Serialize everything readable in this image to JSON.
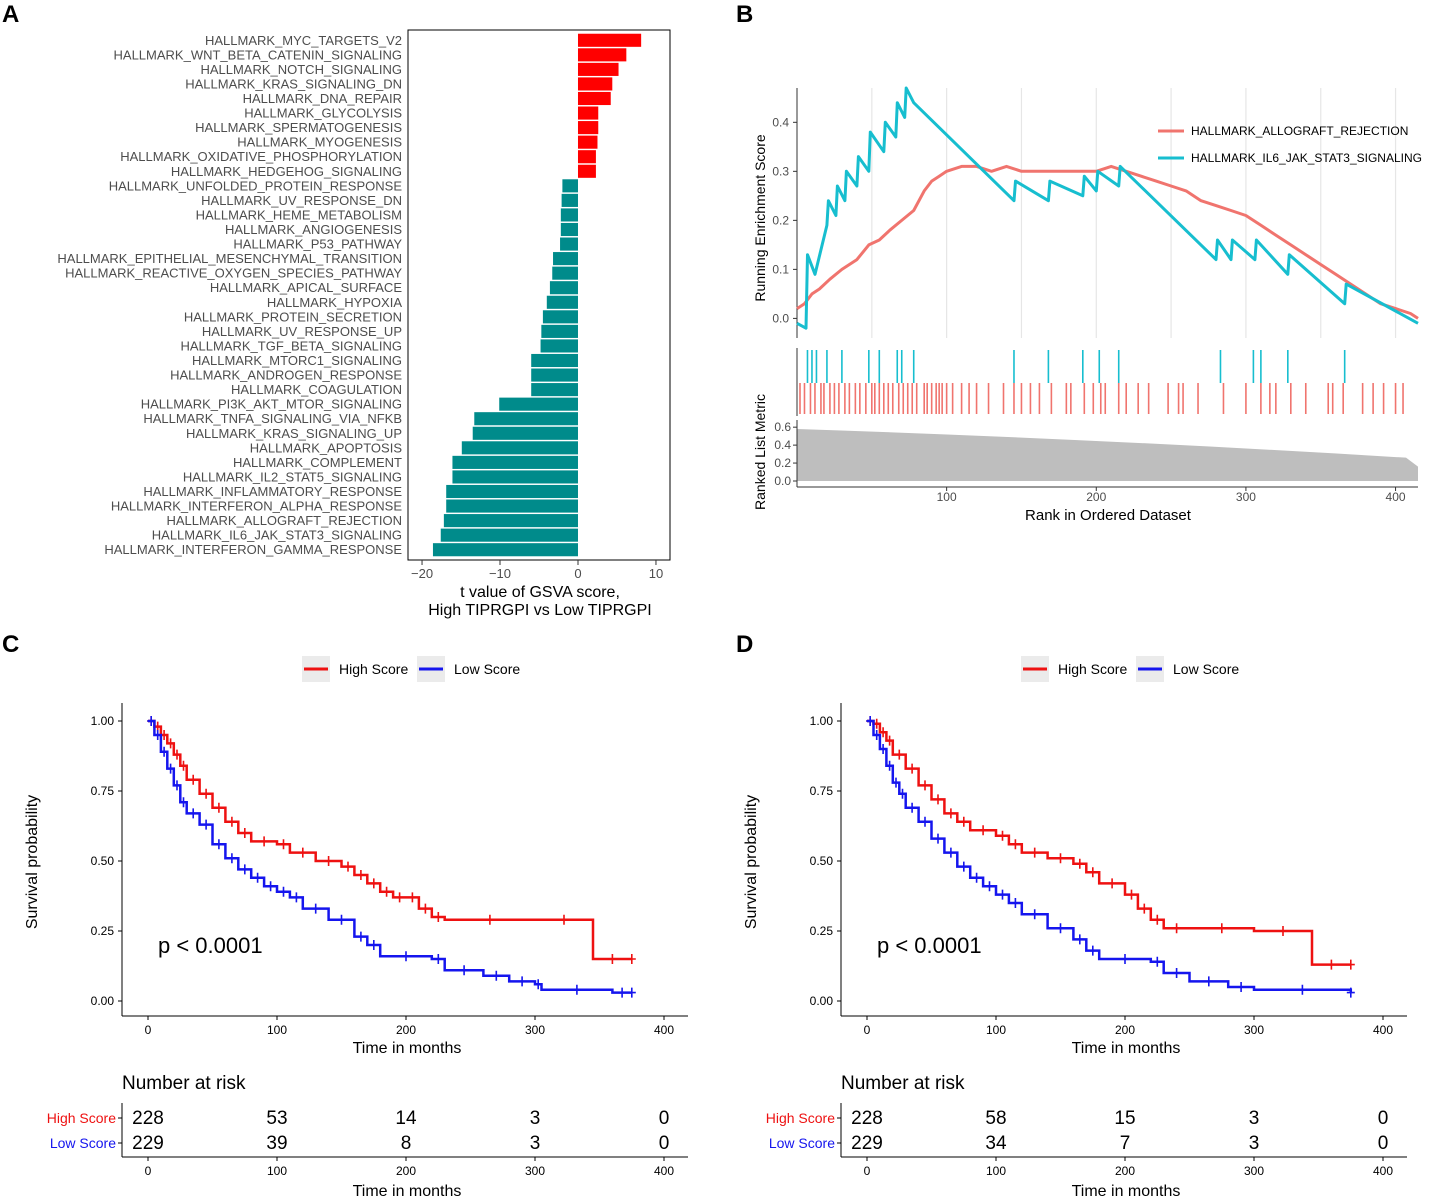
{
  "colors": {
    "up": "#ff0000",
    "down": "#008b8b",
    "allograft": "#f0746e",
    "il6": "#17becf",
    "metric": "#bebebe",
    "high": "#ee1111",
    "low": "#1515ee",
    "axis": "#333333"
  },
  "panel_labels": {
    "a": "A",
    "b": "B",
    "c": "C",
    "d": "D"
  },
  "chart_data": [
    {
      "id": "A",
      "type": "bar",
      "orientation": "horizontal",
      "xlabel": "t value of GSVA score,",
      "xlabel2": "High TIPRGPI vs Low TIPRGPI",
      "xlim": [
        -20,
        10
      ],
      "xticks": [
        -20,
        -10,
        0,
        10
      ],
      "categories": [
        "HALLMARK_MYC_TARGETS_V2",
        "HALLMARK_WNT_BETA_CATENIN_SIGNALING",
        "HALLMARK_NOTCH_SIGNALING",
        "HALLMARK_KRAS_SIGNALING_DN",
        "HALLMARK_DNA_REPAIR",
        "HALLMARK_GLYCOLYSIS",
        "HALLMARK_SPERMATOGENESIS",
        "HALLMARK_MYOGENESIS",
        "HALLMARK_OXIDATIVE_PHOSPHORYLATION",
        "HALLMARK_HEDGEHOG_SIGNALING",
        "HALLMARK_UNFOLDED_PROTEIN_RESPONSE",
        "HALLMARK_UV_RESPONSE_DN",
        "HALLMARK_HEME_METABOLISM",
        "HALLMARK_ANGIOGENESIS",
        "HALLMARK_P53_PATHWAY",
        "HALLMARK_EPITHELIAL_MESENCHYMAL_TRANSITION",
        "HALLMARK_REACTIVE_OXYGEN_SPECIES_PATHWAY",
        "HALLMARK_APICAL_SURFACE",
        "HALLMARK_HYPOXIA",
        "HALLMARK_PROTEIN_SECRETION",
        "HALLMARK_UV_RESPONSE_UP",
        "HALLMARK_TGF_BETA_SIGNALING",
        "HALLMARK_MTORC1_SIGNALING",
        "HALLMARK_ANDROGEN_RESPONSE",
        "HALLMARK_COAGULATION",
        "HALLMARK_PI3K_AKT_MTOR_SIGNALING",
        "HALLMARK_TNFA_SIGNALING_VIA_NFKB",
        "HALLMARK_KRAS_SIGNALING_UP",
        "HALLMARK_APOPTOSIS",
        "HALLMARK_COMPLEMENT",
        "HALLMARK_IL2_STAT5_SIGNALING",
        "HALLMARK_INFLAMMATORY_RESPONSE",
        "HALLMARK_INTERFERON_ALPHA_RESPONSE",
        "HALLMARK_ALLOGRAFT_REJECTION",
        "HALLMARK_IL6_JAK_STAT3_SIGNALING",
        "HALLMARK_INTERFERON_GAMMA_RESPONSE"
      ],
      "values": [
        8.1,
        6.2,
        5.2,
        4.4,
        4.2,
        2.6,
        2.6,
        2.5,
        2.3,
        2.3,
        -2.0,
        -2.1,
        -2.2,
        -2.2,
        -2.3,
        -3.2,
        -3.3,
        -3.6,
        -4.0,
        -4.5,
        -4.7,
        -4.8,
        -6.0,
        -6.0,
        -6.0,
        -10.1,
        -13.3,
        -13.5,
        -14.9,
        -16.1,
        -16.1,
        -16.9,
        -16.9,
        -17.2,
        -17.6,
        -18.6
      ]
    },
    {
      "id": "B",
      "type": "line",
      "ylabel": "Running Enrichment Score",
      "ylabel2": "Ranked List Metric",
      "xlabel": "Rank in Ordered Dataset",
      "xlim": [
        0,
        415
      ],
      "ylim": [
        -0.04,
        0.47
      ],
      "metric_ylim": [
        0,
        0.68
      ],
      "xticks": [
        100,
        200,
        300,
        400
      ],
      "yticks": [
        "0.0",
        "0.1",
        "0.2",
        "0.3",
        "0.4"
      ],
      "metric_yticks": [
        "0.0",
        "0.2",
        "0.4",
        "0.6"
      ],
      "series": [
        {
          "name": "HALLMARK_ALLOGRAFT_REJECTION",
          "x": [
            0,
            5,
            10,
            15,
            22,
            30,
            40,
            48,
            55,
            62,
            70,
            78,
            85,
            90,
            95,
            100,
            110,
            120,
            130,
            140,
            150,
            160,
            170,
            180,
            190,
            200,
            210,
            220,
            230,
            240,
            250,
            260,
            270,
            280,
            290,
            300,
            310,
            320,
            330,
            340,
            350,
            360,
            370,
            380,
            390,
            400,
            410,
            415
          ],
          "y": [
            0.02,
            0.03,
            0.05,
            0.06,
            0.08,
            0.1,
            0.12,
            0.15,
            0.16,
            0.18,
            0.2,
            0.22,
            0.26,
            0.28,
            0.29,
            0.3,
            0.31,
            0.31,
            0.3,
            0.31,
            0.3,
            0.3,
            0.3,
            0.3,
            0.3,
            0.3,
            0.31,
            0.3,
            0.29,
            0.28,
            0.27,
            0.26,
            0.24,
            0.23,
            0.22,
            0.21,
            0.19,
            0.17,
            0.15,
            0.13,
            0.11,
            0.09,
            0.07,
            0.05,
            0.03,
            0.02,
            0.01,
            0.0
          ]
        },
        {
          "name": "HALLMARK_IL6_JAK_STAT3_SIGNALING",
          "x": [
            0,
            6,
            7,
            12,
            20,
            21,
            26,
            27,
            32,
            33,
            40,
            41,
            48,
            49,
            58,
            59,
            66,
            67,
            72,
            73,
            78,
            145,
            146,
            168,
            169,
            191,
            192,
            200,
            201,
            215,
            216,
            280,
            281,
            290,
            291,
            306,
            307,
            328,
            329,
            366,
            367,
            415
          ],
          "y": [
            -0.01,
            -0.02,
            0.13,
            0.09,
            0.19,
            0.24,
            0.21,
            0.27,
            0.24,
            0.3,
            0.27,
            0.33,
            0.3,
            0.38,
            0.34,
            0.4,
            0.37,
            0.44,
            0.41,
            0.47,
            0.44,
            0.24,
            0.28,
            0.24,
            0.28,
            0.25,
            0.29,
            0.26,
            0.3,
            0.27,
            0.31,
            0.12,
            0.16,
            0.12,
            0.16,
            0.12,
            0.16,
            0.09,
            0.13,
            0.03,
            0.07,
            -0.01
          ]
        }
      ],
      "hits_il6": [
        7,
        10,
        13,
        20,
        30,
        48,
        55,
        67,
        70,
        78,
        145,
        168,
        191,
        202,
        215,
        283,
        305,
        310,
        328,
        366
      ],
      "hits_allograft": [
        2,
        5,
        9,
        12,
        16,
        18,
        22,
        25,
        28,
        32,
        35,
        39,
        42,
        46,
        50,
        52,
        55,
        58,
        61,
        64,
        68,
        71,
        74,
        77,
        80,
        85,
        87,
        90,
        93,
        95,
        97,
        100,
        104,
        110,
        115,
        120,
        128,
        138,
        145,
        150,
        156,
        162,
        170,
        180,
        183,
        192,
        198,
        203,
        206,
        215,
        220,
        228,
        235,
        248,
        255,
        258,
        268,
        285,
        300,
        310,
        316,
        320,
        330,
        340,
        355,
        358,
        365,
        378,
        385,
        392,
        400,
        405
      ]
    },
    {
      "id": "C",
      "type": "line",
      "subtype": "survival",
      "xlabel": "Time in months",
      "ylabel": "Survival probability",
      "xlim": [
        0,
        400
      ],
      "ylim": [
        0,
        1
      ],
      "xticks": [
        0,
        100,
        200,
        300,
        400
      ],
      "yticks": [
        "0.00",
        "0.25",
        "0.50",
        "0.75",
        "1.00"
      ],
      "pvalue": "p < 0.0001",
      "legend": [
        "High Score",
        "Low Score"
      ],
      "series": [
        {
          "name": "High Score",
          "x": [
            0,
            5,
            10,
            15,
            20,
            25,
            30,
            40,
            50,
            60,
            70,
            80,
            100,
            110,
            130,
            150,
            160,
            170,
            180,
            190,
            200,
            210,
            220,
            230,
            300,
            345,
            375
          ],
          "y": [
            1,
            0.98,
            0.95,
            0.92,
            0.88,
            0.84,
            0.79,
            0.74,
            0.69,
            0.64,
            0.6,
            0.57,
            0.56,
            0.53,
            0.5,
            0.48,
            0.45,
            0.42,
            0.39,
            0.37,
            0.37,
            0.33,
            0.3,
            0.29,
            0.29,
            0.15,
            0.15
          ]
        },
        {
          "name": "Low Score",
          "x": [
            0,
            5,
            10,
            15,
            20,
            25,
            30,
            40,
            50,
            60,
            70,
            80,
            90,
            100,
            110,
            120,
            140,
            160,
            170,
            180,
            220,
            230,
            260,
            280,
            300,
            305,
            360,
            375
          ],
          "y": [
            1,
            0.95,
            0.89,
            0.83,
            0.77,
            0.71,
            0.67,
            0.63,
            0.56,
            0.51,
            0.47,
            0.44,
            0.41,
            0.39,
            0.37,
            0.33,
            0.29,
            0.23,
            0.2,
            0.16,
            0.15,
            0.11,
            0.09,
            0.07,
            0.06,
            0.04,
            0.03,
            0.03
          ]
        }
      ],
      "risk_table": {
        "title": "Number at risk",
        "times": [
          0,
          100,
          200,
          300,
          400
        ],
        "rows": [
          {
            "label": "High Score",
            "counts": [
              "228",
              "53",
              "14",
              "3",
              "0"
            ]
          },
          {
            "label": "Low Score",
            "counts": [
              "229",
              "39",
              "8",
              "3",
              "0"
            ]
          }
        ]
      }
    },
    {
      "id": "D",
      "type": "line",
      "subtype": "survival",
      "xlabel": "Time in months",
      "ylabel": "Survival probability",
      "xlim": [
        0,
        400
      ],
      "ylim": [
        0,
        1
      ],
      "xticks": [
        0,
        100,
        200,
        300,
        400
      ],
      "yticks": [
        "0.00",
        "0.25",
        "0.50",
        "0.75",
        "1.00"
      ],
      "pvalue": "p < 0.0001",
      "legend": [
        "High Score",
        "Low Score"
      ],
      "series": [
        {
          "name": "High Score",
          "x": [
            0,
            5,
            10,
            15,
            20,
            30,
            40,
            50,
            60,
            70,
            80,
            100,
            110,
            120,
            140,
            160,
            170,
            180,
            200,
            210,
            220,
            230,
            250,
            300,
            345,
            375
          ],
          "y": [
            1,
            0.99,
            0.96,
            0.93,
            0.88,
            0.83,
            0.77,
            0.72,
            0.67,
            0.64,
            0.61,
            0.59,
            0.56,
            0.53,
            0.51,
            0.49,
            0.46,
            0.42,
            0.38,
            0.33,
            0.29,
            0.26,
            0.26,
            0.25,
            0.13,
            0.13
          ]
        },
        {
          "name": "Low Score",
          "x": [
            0,
            5,
            10,
            15,
            20,
            25,
            30,
            40,
            50,
            60,
            70,
            80,
            90,
            100,
            110,
            120,
            140,
            160,
            170,
            180,
            220,
            230,
            250,
            280,
            300,
            375
          ],
          "y": [
            1,
            0.95,
            0.9,
            0.84,
            0.78,
            0.74,
            0.69,
            0.64,
            0.58,
            0.53,
            0.48,
            0.44,
            0.41,
            0.38,
            0.35,
            0.31,
            0.26,
            0.22,
            0.18,
            0.15,
            0.14,
            0.1,
            0.07,
            0.05,
            0.04,
            0.03
          ]
        }
      ],
      "risk_table": {
        "title": "Number at risk",
        "times": [
          0,
          100,
          200,
          300,
          400
        ],
        "rows": [
          {
            "label": "High Score",
            "counts": [
              "228",
              "58",
              "15",
              "3",
              "0"
            ]
          },
          {
            "label": "Low Score",
            "counts": [
              "229",
              "34",
              "7",
              "3",
              "0"
            ]
          }
        ]
      }
    }
  ]
}
